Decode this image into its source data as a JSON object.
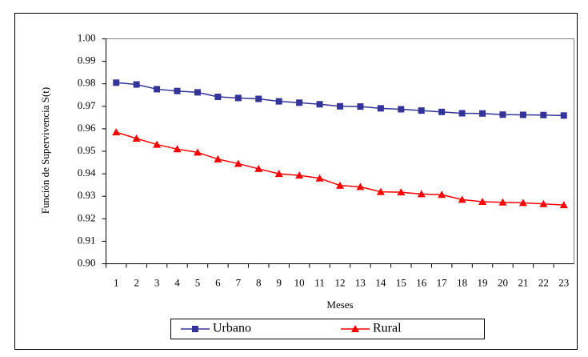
{
  "chart_data": {
    "type": "line",
    "y_label": "Función de Supervivencia S(t)",
    "x_label": "Meses",
    "categories": [
      "1",
      "2",
      "3",
      "4",
      "5",
      "6",
      "7",
      "8",
      "9",
      "10",
      "11",
      "12",
      "13",
      "14",
      "15",
      "16",
      "17",
      "18",
      "19",
      "20",
      "21",
      "22",
      "23"
    ],
    "series": [
      {
        "name": "Urbano",
        "color": "#333399",
        "marker": "square",
        "values": [
          0.9805,
          0.9797,
          0.9776,
          0.9768,
          0.9762,
          0.9742,
          0.9737,
          0.9733,
          0.9722,
          0.9716,
          0.9709,
          0.97,
          0.9699,
          0.9691,
          0.9687,
          0.9681,
          0.9675,
          0.9669,
          0.9668,
          0.9663,
          0.9662,
          0.9661,
          0.9659
        ]
      },
      {
        "name": "Rural",
        "color": "#ff0000",
        "marker": "triangle",
        "values": [
          0.9585,
          0.9557,
          0.953,
          0.951,
          0.9495,
          0.9465,
          0.9445,
          0.9422,
          0.94,
          0.9393,
          0.938,
          0.9348,
          0.9342,
          0.932,
          0.9318,
          0.931,
          0.9307,
          0.9285,
          0.9276,
          0.9273,
          0.9271,
          0.9266,
          0.9261
        ]
      }
    ],
    "ylim": [
      0.9,
      1.0
    ],
    "yticks": [
      {
        "value": 0.9,
        "label": "0.90"
      },
      0.91,
      0.92,
      0.93,
      0.94,
      0.95,
      0.96,
      0.97,
      0.98,
      0.99,
      {
        "value": 1.0,
        "label": "1.00"
      }
    ],
    "legend": "bottom"
  }
}
